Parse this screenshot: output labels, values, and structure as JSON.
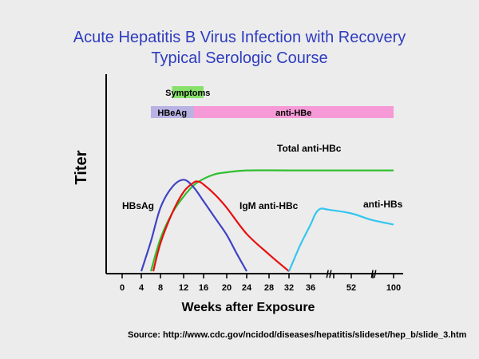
{
  "slide": {
    "title_line1": "Acute Hepatitis B Virus Infection with Recovery",
    "title_line2": "Typical Serologic Course",
    "source": "Source: http://www.cdc.gov/ncidod/diseases/hepatitis/slideset/hep_b/slide_3.htm"
  },
  "colors": {
    "background": "#ececec",
    "title": "#2e3cbf",
    "symptoms_bar": "#88e06a",
    "hbeag_bar": "#b9b3e4",
    "antihbe_bar": "#f59ad6",
    "hbsag": "#3f43c4",
    "igm": "#e80f0f",
    "total": "#2fbf2f",
    "antihbs": "#33c6ee"
  },
  "chart_data": {
    "type": "line",
    "xlabel": "Weeks after Exposure",
    "ylabel": "Titer",
    "x_ticks": [
      "0",
      "4",
      "8",
      "12",
      "16",
      "20",
      "24",
      "28",
      "32",
      "36",
      "52",
      "100"
    ],
    "axis_breaks": [
      "//",
      "//"
    ],
    "bars": [
      {
        "label": "Symptoms",
        "start": 10,
        "end": 16,
        "color": "#88e06a"
      },
      {
        "label": "HBeAg",
        "start": 6,
        "end": 14,
        "color": "#b9b3e4"
      },
      {
        "label": "anti-HBe",
        "start": 14,
        "end": 100,
        "color": "#f59ad6"
      }
    ],
    "series": [
      {
        "name": "HBsAg",
        "color": "#3f43c4",
        "points": [
          [
            4,
            0
          ],
          [
            6,
            0.32
          ],
          [
            8,
            0.68
          ],
          [
            10,
            0.9
          ],
          [
            12,
            0.98
          ],
          [
            14,
            0.9
          ],
          [
            16,
            0.75
          ],
          [
            18,
            0.57
          ],
          [
            20,
            0.39
          ],
          [
            22,
            0.19
          ],
          [
            24,
            0
          ]
        ]
      },
      {
        "name": "IgM anti-HBc",
        "color": "#e80f0f",
        "points": [
          [
            6.5,
            0
          ],
          [
            8,
            0.3
          ],
          [
            10,
            0.62
          ],
          [
            12,
            0.85
          ],
          [
            14,
            0.95
          ],
          [
            15,
            0.96
          ],
          [
            16,
            0.93
          ],
          [
            18,
            0.82
          ],
          [
            20,
            0.68
          ],
          [
            24,
            0.4
          ],
          [
            28,
            0.18
          ],
          [
            32,
            0
          ]
        ]
      },
      {
        "name": "Total anti-HBc",
        "color": "#2fbf2f",
        "points": [
          [
            6,
            0
          ],
          [
            8,
            0.35
          ],
          [
            10,
            0.62
          ],
          [
            12,
            0.8
          ],
          [
            14,
            0.92
          ],
          [
            16,
            0.99
          ],
          [
            18,
            1.04
          ],
          [
            20,
            1.06
          ],
          [
            24,
            1.08
          ],
          [
            32,
            1.08
          ],
          [
            52,
            1.08
          ],
          [
            100,
            1.08
          ]
        ]
      },
      {
        "name": "anti-HBs",
        "color": "#33c6ee",
        "points": [
          [
            32,
            0
          ],
          [
            34,
            0.27
          ],
          [
            36,
            0.5
          ],
          [
            38,
            0.62
          ],
          [
            40,
            0.67
          ],
          [
            43,
            0.66
          ],
          [
            52,
            0.62
          ],
          [
            75,
            0.55
          ],
          [
            100,
            0.5
          ]
        ]
      }
    ]
  }
}
